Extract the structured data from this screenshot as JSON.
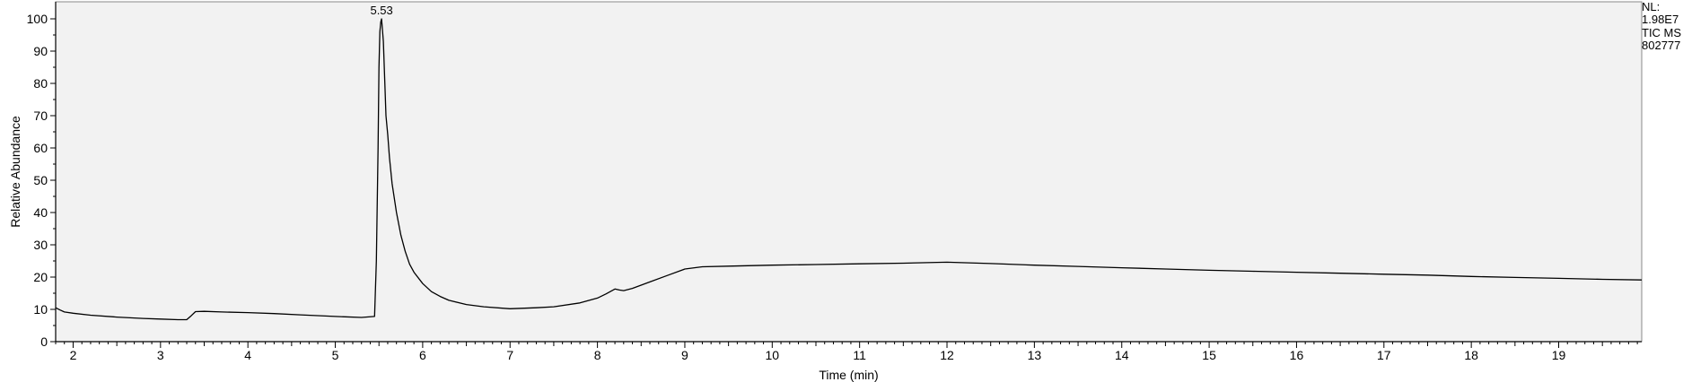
{
  "info": {
    "nl_label": "NL:",
    "nl_value": "1.98E7",
    "trace_label": "TIC  MS",
    "file_id": "802777"
  },
  "chart_data": {
    "type": "line",
    "title": "",
    "xlabel": "Time (min)",
    "ylabel": "Relative Abundance",
    "xlim": [
      1.8,
      19.95
    ],
    "ylim": [
      0,
      100
    ],
    "x_ticks": [
      2,
      3,
      4,
      5,
      6,
      7,
      8,
      9,
      10,
      11,
      12,
      13,
      14,
      15,
      16,
      17,
      18,
      19
    ],
    "y_ticks": [
      0,
      10,
      20,
      30,
      40,
      50,
      60,
      70,
      80,
      90,
      100
    ],
    "grid": false,
    "colors": {
      "line": "#000000",
      "plot_bg": "#f2f2f2",
      "frame": "#8a8a8a"
    },
    "annotations": [
      {
        "x": 5.53,
        "y": 100,
        "text": "5.53"
      }
    ],
    "series": [
      {
        "x": [
          1.8,
          1.85,
          1.9,
          2.0,
          2.2,
          2.5,
          2.8,
          3.0,
          3.2,
          3.3,
          3.35,
          3.4,
          3.5,
          3.7,
          4.0,
          4.3,
          4.6,
          5.0,
          5.3,
          5.45,
          5.47,
          5.49,
          5.5,
          5.51,
          5.52,
          5.53,
          5.55,
          5.57,
          5.58,
          5.59,
          5.6,
          5.62,
          5.65,
          5.7,
          5.75,
          5.8,
          5.85,
          5.9,
          6.0,
          6.1,
          6.2,
          6.3,
          6.5,
          6.7,
          7.0,
          7.3,
          7.5,
          7.8,
          8.0,
          8.1,
          8.2,
          8.25,
          8.3,
          8.4,
          8.6,
          8.8,
          9.0,
          9.2,
          9.5,
          10.0,
          10.5,
          11.0,
          11.5,
          12.0,
          12.5,
          13.0,
          13.5,
          14.0,
          14.5,
          15.0,
          15.5,
          16.0,
          16.5,
          17.0,
          17.5,
          18.0,
          18.5,
          19.0,
          19.5,
          19.95
        ],
        "y": [
          10.5,
          9.8,
          9.2,
          8.8,
          8.2,
          7.6,
          7.2,
          7.0,
          6.8,
          6.8,
          8.0,
          9.3,
          9.4,
          9.2,
          9.0,
          8.7,
          8.3,
          7.8,
          7.5,
          7.8,
          25,
          60,
          85,
          96,
          99,
          100,
          93,
          78,
          70,
          67,
          64,
          57,
          49,
          40,
          33,
          28,
          24,
          21.5,
          18,
          15.5,
          14,
          12.8,
          11.5,
          10.8,
          10.2,
          10.5,
          10.8,
          12,
          13.5,
          14.8,
          16.3,
          16.0,
          15.8,
          16.5,
          18.5,
          20.5,
          22.5,
          23.2,
          23.4,
          23.7,
          23.9,
          24.1,
          24.3,
          24.6,
          24.2,
          23.7,
          23.3,
          22.9,
          22.5,
          22.1,
          21.8,
          21.5,
          21.2,
          20.9,
          20.6,
          20.2,
          19.9,
          19.6,
          19.3,
          19.1
        ]
      }
    ]
  }
}
